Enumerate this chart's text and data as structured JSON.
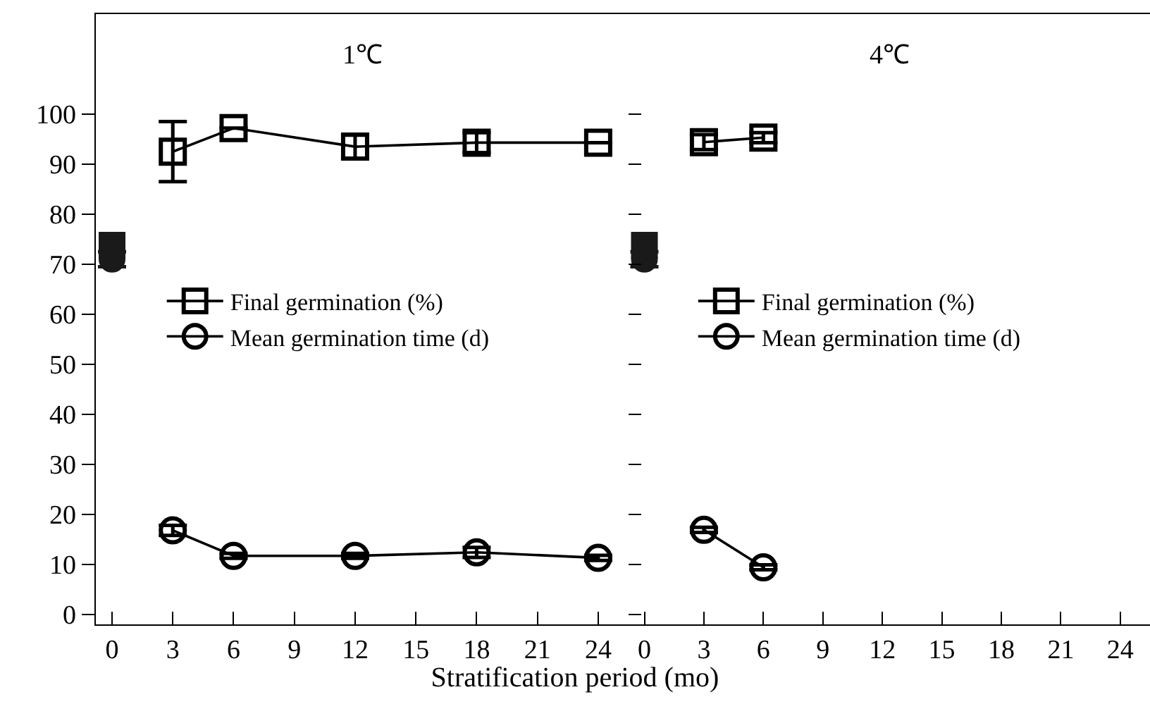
{
  "chart_data": [
    {
      "type": "line",
      "title": "1℃",
      "xlabel": "Stratification period (mo)",
      "xlim": [
        -0.8,
        25.5
      ],
      "xticks": [
        0,
        3,
        6,
        9,
        12,
        15,
        18,
        21,
        24
      ],
      "ylim": [
        -2,
        120
      ],
      "yticks": [
        0,
        10,
        20,
        30,
        40,
        50,
        60,
        70,
        80,
        90,
        100
      ],
      "grid": false,
      "legend": "left",
      "series": [
        {
          "name": "Final germination (%)",
          "color": "#000000",
          "marker": "square",
          "x": [
            3,
            6,
            12,
            18,
            24
          ],
          "values": [
            92.5,
            97.2,
            93.5,
            94.3,
            94.3
          ],
          "errors": [
            6,
            null,
            2.3,
            2,
            null
          ]
        },
        {
          "name": "Mean germination time (d)",
          "color": "#000000",
          "marker": "circle",
          "x": [
            3,
            6,
            12,
            18,
            24
          ],
          "values": [
            16.8,
            11.7,
            11.7,
            12.4,
            11.3
          ],
          "errors": [
            1,
            0.5,
            0.5,
            1,
            0.5
          ]
        },
        {
          "type": "scatter",
          "color": "#1a1a1a",
          "marker": "square",
          "x": [
            0
          ],
          "values": [
            73.8
          ],
          "errors": [
            null
          ]
        },
        {
          "type": "scatter",
          "color": "#1a1a1a",
          "marker": "circle",
          "x": [
            0
          ],
          "values": [
            71
          ],
          "errors": [
            1.5
          ]
        }
      ]
    },
    {
      "type": "line",
      "title": "4℃",
      "xlim": [
        -0.8,
        25.5
      ],
      "xticks": [
        0,
        3,
        6,
        9,
        12,
        15,
        18,
        21,
        24
      ],
      "ylim": [
        -2,
        120
      ],
      "yticks": [
        0,
        10,
        20,
        30,
        40,
        50,
        60,
        70,
        80,
        90,
        100
      ],
      "tick_labels": "x",
      "grid": false,
      "legend": "left",
      "series": [
        {
          "name": "Final germination (%)",
          "color": "#000000",
          "marker": "square",
          "x": [
            3,
            6
          ],
          "values": [
            94.4,
            95.3
          ],
          "errors": [
            1.5,
            1
          ]
        },
        {
          "name": "Mean germination time (d)",
          "color": "#000000",
          "marker": "circle",
          "x": [
            3,
            6
          ],
          "values": [
            16.9,
            9.4
          ],
          "errors": [
            0.5,
            0.5
          ]
        },
        {
          "type": "scatter",
          "color": "#1a1a1a",
          "marker": "square",
          "x": [
            0
          ],
          "values": [
            73.8
          ],
          "errors": [
            null
          ]
        },
        {
          "type": "scatter",
          "color": "#1a1a1a",
          "marker": "circle",
          "x": [
            0
          ],
          "values": [
            71
          ],
          "errors": [
            1.5
          ]
        }
      ]
    }
  ]
}
